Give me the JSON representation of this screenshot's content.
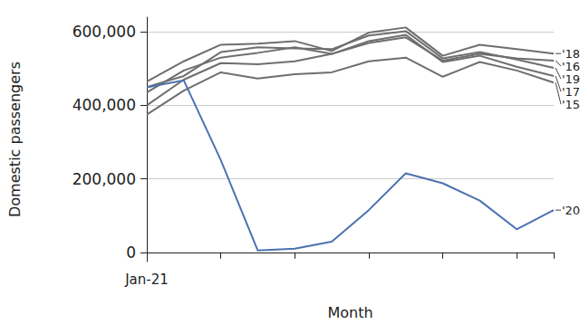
{
  "chart_data": {
    "type": "line",
    "x_label": "Month",
    "y_label": "Domestic passengers",
    "categories": [
      "Jan-21",
      null,
      null,
      null,
      null,
      null,
      null,
      null,
      null,
      null,
      null,
      null
    ],
    "series": [
      {
        "name": "'18",
        "color": "#6e6e6e",
        "values": [
          465000,
          520000,
          565000,
          568000,
          575000,
          548000,
          598000,
          612000,
          535000,
          565000,
          553000,
          541000
        ]
      },
      {
        "name": "'16",
        "color": "#6e6e6e",
        "values": [
          435000,
          495000,
          530000,
          543000,
          558000,
          540000,
          570000,
          585000,
          522000,
          540000,
          528000,
          522000
        ]
      },
      {
        "name": "'19",
        "color": "#6e6e6e",
        "values": [
          450000,
          480000,
          545000,
          558000,
          555000,
          553000,
          590000,
          602000,
          528000,
          545000,
          525000,
          502000
        ]
      },
      {
        "name": "'17",
        "color": "#6e6e6e",
        "values": [
          400000,
          470000,
          515000,
          512000,
          520000,
          540000,
          575000,
          592000,
          518000,
          535000,
          505000,
          480000
        ]
      },
      {
        "name": "'15",
        "color": "#6e6e6e",
        "values": [
          375000,
          440000,
          490000,
          473000,
          485000,
          490000,
          520000,
          530000,
          478000,
          518000,
          495000,
          462000
        ]
      },
      {
        "name": "'20",
        "color": "#4c72b0",
        "values": [
          449000,
          468000,
          251000,
          5000,
          10000,
          29000,
          115000,
          215000,
          188000,
          141000,
          63000,
          115000
        ]
      }
    ],
    "ylim": [
      -25000,
      640000
    ],
    "yticks": [
      0,
      {
        "value": 200000,
        "label": "200,000"
      },
      {
        "value": 400000,
        "label": "400,000"
      },
      {
        "value": 600000,
        "label": "600,000"
      }
    ],
    "grid": true
  }
}
